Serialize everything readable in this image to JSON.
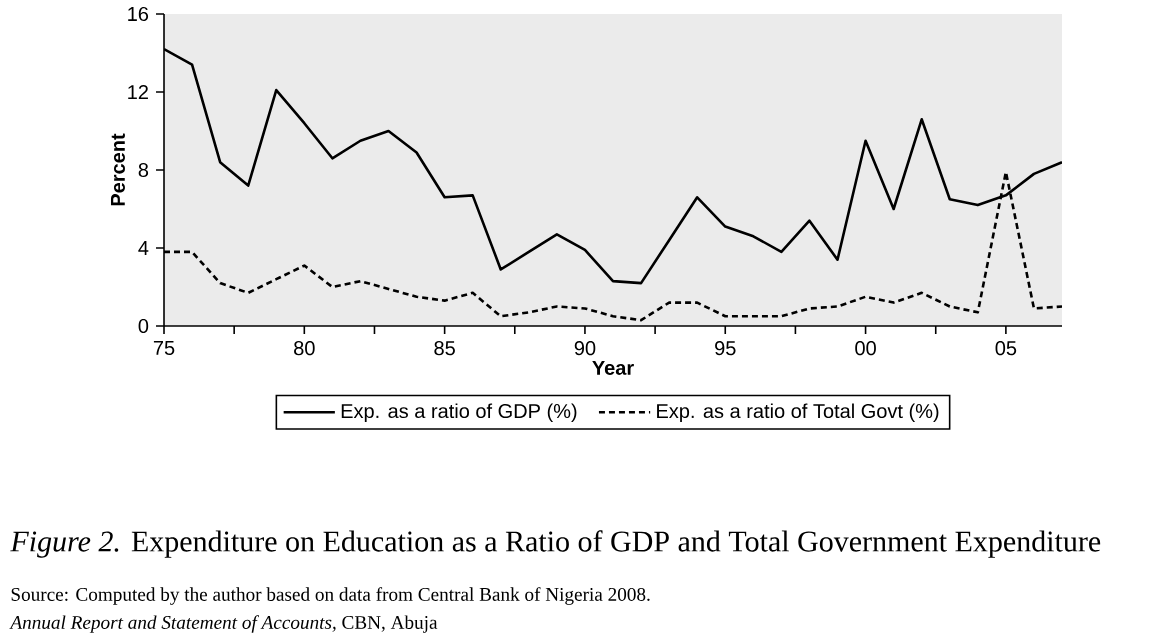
{
  "chart_data": {
    "type": "line",
    "title": "*Figure 2.* Expenditure on Education as a Ratio of GDP and Total Government Expenditure",
    "xlabel": "Year",
    "ylabel": "Percent",
    "x": [
      1975,
      1976,
      1977,
      1978,
      1979,
      1980,
      1981,
      1982,
      1983,
      1984,
      1985,
      1986,
      1987,
      1988,
      1989,
      1990,
      1991,
      1992,
      1993,
      1994,
      1995,
      1996,
      1997,
      1998,
      1999,
      2000,
      2001,
      2002,
      2003,
      2004,
      2005,
      2006,
      2007
    ],
    "series": [
      {
        "name": "Exp. as a ratio of GDP (%)",
        "color": "#000000",
        "line_style": "solid",
        "values": [
          14.2,
          13.4,
          8.4,
          7.2,
          12.1,
          10.4,
          8.6,
          9.5,
          10.0,
          8.9,
          6.6,
          6.7,
          2.9,
          3.8,
          4.7,
          3.9,
          2.3,
          2.2,
          4.4,
          6.6,
          5.1,
          4.6,
          3.8,
          5.4,
          3.4,
          9.5,
          6.0,
          10.6,
          6.5,
          6.2,
          6.7,
          7.8,
          8.4
        ]
      },
      {
        "name": "Exp. as a ratio of Total Govt (%)",
        "color": "#000000",
        "line_style": "dashed",
        "values": [
          3.8,
          3.8,
          2.2,
          1.7,
          2.4,
          3.1,
          2.0,
          2.3,
          1.9,
          1.5,
          1.3,
          1.7,
          0.5,
          0.7,
          1.0,
          0.9,
          0.5,
          0.3,
          1.2,
          1.2,
          0.5,
          0.5,
          0.5,
          0.9,
          1.0,
          1.5,
          1.2,
          1.7,
          1.0,
          0.7,
          7.9,
          0.9,
          1.0
        ]
      }
    ],
    "xlim": [
      1975,
      2007
    ],
    "ylim": [
      0,
      16
    ],
    "xticks": [
      {
        "value": 1975,
        "label": "75"
      },
      {
        "value": 1977.5,
        "label": null
      },
      {
        "value": 1980,
        "label": "80"
      },
      {
        "value": 1982.5,
        "label": null
      },
      {
        "value": 1985,
        "label": "85"
      },
      {
        "value": 1987.5,
        "label": null
      },
      {
        "value": 1990,
        "label": "90"
      },
      {
        "value": 1992.5,
        "label": null
      },
      {
        "value": 1995,
        "label": "95"
      },
      {
        "value": 1997.5,
        "label": null
      },
      {
        "value": 2000,
        "label": "00"
      },
      {
        "value": 2002.5,
        "label": null
      },
      {
        "value": 2005,
        "label": "05"
      }
    ],
    "yticks": [
      0,
      4,
      8,
      12,
      16
    ],
    "grid": false,
    "legend": "bottom",
    "annotations": [
      "Source: Computed by the author based on data from Central Bank of Nigeria 2008.",
      "*Annual Report and Statement of Accounts,* CBN, Abuja"
    ]
  }
}
